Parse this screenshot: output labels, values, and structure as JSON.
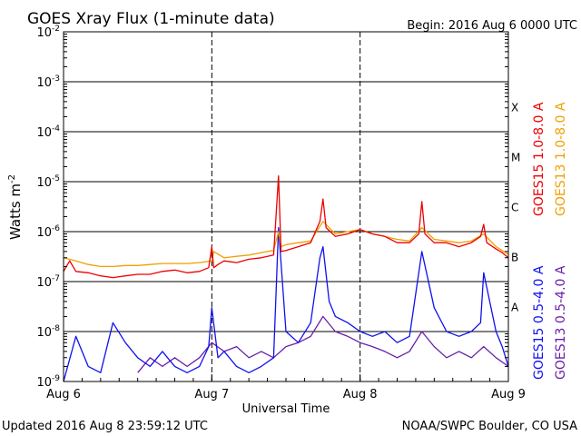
{
  "chart_data": {
    "type": "line",
    "title": "GOES Xray Flux (1-minute data)",
    "begin_text": "Begin:  2016 Aug 6 0000 UTC",
    "xlabel": "Universal Time",
    "ylabel": "Watts m",
    "ylabel_sup": "-2",
    "yscale": "log",
    "ylim": [
      1e-09,
      0.01
    ],
    "y_ticks": [
      {
        "exp": -2,
        "label": "10",
        "sup": "-2"
      },
      {
        "exp": -3,
        "label": "10",
        "sup": "-3"
      },
      {
        "exp": -4,
        "label": "10",
        "sup": "-4"
      },
      {
        "exp": -5,
        "label": "10",
        "sup": "-5"
      },
      {
        "exp": -6,
        "label": "10",
        "sup": "-6"
      },
      {
        "exp": -7,
        "label": "10",
        "sup": "-7"
      },
      {
        "exp": -8,
        "label": "10",
        "sup": "-8"
      },
      {
        "exp": -9,
        "label": "10",
        "sup": "-9"
      }
    ],
    "x_ticks": [
      "Aug 6",
      "Aug 7",
      "Aug 8",
      "Aug 9"
    ],
    "xlim_hours": [
      0,
      72
    ],
    "flare_classes": [
      {
        "label": "X",
        "exp": -3.5
      },
      {
        "label": "M",
        "exp": -4.5
      },
      {
        "label": "C",
        "exp": -5.5
      },
      {
        "label": "B",
        "exp": -6.5
      },
      {
        "label": "A",
        "exp": -7.5
      }
    ],
    "grid": true,
    "legend_position": "right (vertical)",
    "series": [
      {
        "name": "GOES15 1.0-8.0 A",
        "color": "#ee0000",
        "hours": [
          0,
          1,
          2,
          4,
          6,
          8,
          10,
          12,
          14,
          16,
          18,
          20,
          22,
          23.5,
          24,
          24.3,
          25,
          26,
          28,
          30,
          32,
          34,
          34.8,
          35.2,
          36,
          38,
          40,
          41.5,
          42,
          42.5,
          44,
          46,
          48,
          50,
          52,
          54,
          56,
          57.5,
          58,
          58.5,
          60,
          62,
          64,
          66,
          67.5,
          68,
          68.5,
          70,
          71,
          72
        ],
        "values": [
          1.6e-07,
          2.6e-07,
          1.6e-07,
          1.5e-07,
          1.3e-07,
          1.2e-07,
          1.3e-07,
          1.4e-07,
          1.4e-07,
          1.6e-07,
          1.7e-07,
          1.5e-07,
          1.6e-07,
          1.9e-07,
          5e-07,
          1.9e-07,
          2.2e-07,
          2.6e-07,
          2.4e-07,
          2.8e-07,
          3e-07,
          3.4e-07,
          1.3e-05,
          4e-07,
          4.2e-07,
          5e-07,
          6e-07,
          1.6e-06,
          4.5e-06,
          1.2e-06,
          8e-07,
          9e-07,
          1.1e-06,
          9e-07,
          8e-07,
          6e-07,
          6e-07,
          9e-07,
          4e-06,
          9e-07,
          6e-07,
          6e-07,
          5e-07,
          6e-07,
          8e-07,
          1.4e-06,
          6e-07,
          4.5e-07,
          3.8e-07,
          3e-07
        ]
      },
      {
        "name": "GOES13 1.0-8.0 A",
        "color": "#f0a000",
        "hours": [
          0,
          2,
          4,
          6,
          8,
          10,
          12,
          14,
          16,
          18,
          20,
          22,
          24,
          24.3,
          26,
          28,
          30,
          32,
          34,
          34.8,
          35.2,
          36,
          38,
          40,
          42,
          44,
          46,
          48,
          50,
          52,
          54,
          56,
          58,
          60,
          62,
          64,
          66,
          68,
          70,
          72
        ],
        "values": [
          3e-07,
          2.6e-07,
          2.2e-07,
          2e-07,
          2e-07,
          2.1e-07,
          2.1e-07,
          2.2e-07,
          2.3e-07,
          2.3e-07,
          2.3e-07,
          2.4e-07,
          2.6e-07,
          4e-07,
          3e-07,
          3.2e-07,
          3.4e-07,
          3.8e-07,
          4.2e-07,
          1e-06,
          5e-07,
          5.5e-07,
          6e-07,
          6.5e-07,
          1.6e-06,
          9e-07,
          1e-06,
          1.1e-06,
          9e-07,
          8e-07,
          7e-07,
          6.5e-07,
          1.2e-06,
          7e-07,
          6.5e-07,
          6e-07,
          6.5e-07,
          9e-07,
          5e-07,
          3.5e-07
        ]
      },
      {
        "name": "GOES15 0.5-4.0 A",
        "color": "#1010f0",
        "hours": [
          0,
          2,
          4,
          6,
          8,
          10,
          12,
          14,
          16,
          18,
          20,
          22,
          23.5,
          24,
          25,
          26,
          28,
          30,
          32,
          34,
          34.8,
          36,
          38,
          40,
          41.5,
          42,
          43,
          44,
          46,
          48,
          50,
          52,
          54,
          56,
          58,
          60,
          62,
          64,
          66,
          67.5,
          68,
          70,
          71,
          72
        ],
        "values": [
          1e-09,
          8e-09,
          2e-09,
          1.5e-09,
          1.5e-08,
          6e-09,
          3e-09,
          2e-09,
          4e-09,
          2e-09,
          1.5e-09,
          2e-09,
          5e-09,
          3e-08,
          3e-09,
          4e-09,
          2e-09,
          1.5e-09,
          2e-09,
          3e-09,
          1.2e-06,
          1e-08,
          6e-09,
          1.5e-08,
          3e-07,
          5e-07,
          4e-08,
          2e-08,
          1.5e-08,
          1e-08,
          8e-09,
          1e-08,
          6e-09,
          8e-09,
          4e-07,
          3e-08,
          1e-08,
          8e-09,
          1e-08,
          1.5e-08,
          1.5e-07,
          1e-08,
          5e-09,
          2e-09
        ]
      },
      {
        "name": "GOES13 0.5-4.0 A",
        "color": "#6a1fa8",
        "hours": [
          12,
          14,
          16,
          18,
          20,
          22,
          24,
          26,
          28,
          30,
          32,
          34,
          36,
          38,
          40,
          42,
          44,
          46,
          48,
          50,
          52,
          54,
          56,
          58,
          60,
          62,
          64,
          66,
          68,
          70,
          72
        ],
        "values": [
          1.5e-09,
          3e-09,
          2e-09,
          3e-09,
          2e-09,
          3e-09,
          6e-09,
          4e-09,
          5e-09,
          3e-09,
          4e-09,
          3e-09,
          5e-09,
          6e-09,
          8e-09,
          2e-08,
          1e-08,
          8e-09,
          6e-09,
          5e-09,
          4e-09,
          3e-09,
          4e-09,
          1e-08,
          5e-09,
          3e-09,
          4e-09,
          3e-09,
          5e-09,
          3e-09,
          2e-09
        ]
      }
    ]
  },
  "footer": {
    "updated": "Updated 2016 Aug  8 23:59:12 UTC",
    "credit": "NOAA/SWPC Boulder, CO USA"
  }
}
